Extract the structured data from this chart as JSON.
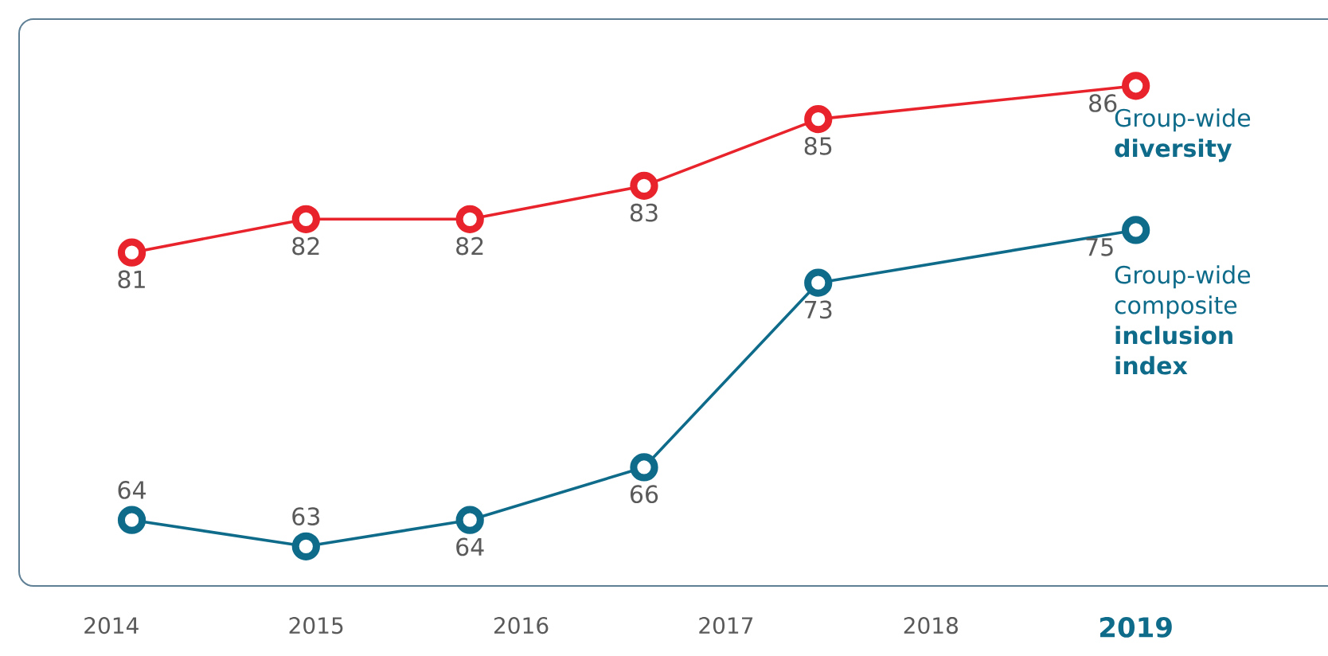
{
  "chart_data": {
    "type": "line",
    "x": [
      2014.1,
      2014.95,
      2015.75,
      2016.6,
      2017.45,
      2019
    ],
    "series": [
      {
        "name": "Group-wide **diversity**",
        "color": "#e8232b",
        "values": [
          81,
          82,
          82,
          83,
          85,
          86
        ]
      },
      {
        "name": "Group-wide composite **inclusion index**",
        "color": "#0f6b8a",
        "values": [
          64,
          63,
          64,
          66,
          73,
          75
        ],
        "axis": "y2"
      }
    ],
    "xlim": [
      2013.55,
      2020
    ],
    "xticks": [
      2014,
      2015,
      2016,
      2017,
      2018,
      2019
    ],
    "ylim": [
      71,
      88
    ],
    "y2lim": [
      61.5,
      83
    ],
    "tick_labels": "x",
    "data_labels": true,
    "marker": "circle",
    "line_style": "solid",
    "grid": false
  }
}
